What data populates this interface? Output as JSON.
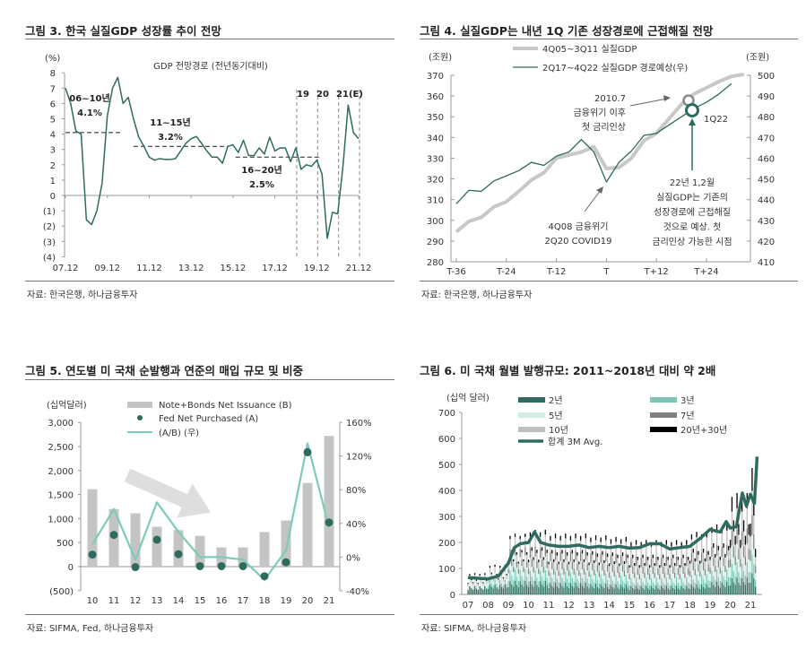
{
  "figures": [
    {
      "title": "그림 3. 한국 실질GDP 성장률 추이 전망",
      "source": "자료: 한국은행, 하나금융투자"
    },
    {
      "title": "그림 4. 실질GDP는 내년 1Q 기존 성장경로에 근접해질 전망",
      "source": "자료: 한국은행, 하나금융투자"
    },
    {
      "title": "그림 5. 연도별 미 국채 순발행과 연준의 매입 규모 및 비중",
      "source": "자료: SIFMA, Fed, 하나금융투자"
    },
    {
      "title": "그림 6. 미 국채 월별 발행규모: 2011~2018년 대비 약 2배",
      "source": "자료: SIFMA, 하나금융투자"
    }
  ],
  "chart_data": [
    {
      "type": "line",
      "title": "GDP 전망경로 (전년동기대비)",
      "ylabel": "(%)",
      "ylim": [
        -4,
        8
      ],
      "yticks": [
        "8",
        "7",
        "6",
        "5",
        "4",
        "3",
        "2",
        "1",
        "0",
        "(1)",
        "(2)",
        "(3)",
        "(4)"
      ],
      "xticks": [
        "07.12",
        "09.12",
        "11.12",
        "13.12",
        "15.12",
        "17.12",
        "19.12",
        "21.12"
      ],
      "color": "#2e6b5e",
      "values": [
        7.0,
        6.0,
        4.2,
        4.0,
        -1.6,
        -1.9,
        -1.0,
        0.8,
        5.2,
        7.0,
        7.7,
        6.0,
        6.4,
        5.0,
        3.8,
        3.2,
        2.5,
        2.3,
        2.4,
        2.35,
        2.35,
        2.4,
        2.9,
        3.4,
        3.7,
        3.85,
        3.4,
        2.9,
        2.5,
        2.5,
        2.1,
        3.2,
        3.3,
        2.8,
        3.6,
        2.6,
        2.6,
        3.1,
        2.7,
        3.8,
        2.9,
        3.1,
        3.1,
        2.2,
        3.1,
        1.7,
        2.0,
        1.9,
        2.3,
        1.4,
        -2.8,
        -1.1,
        -1.2,
        1.9,
        5.9,
        4.1,
        3.7
      ],
      "averages": [
        {
          "label": "06~10년",
          "value_label": "4.1%",
          "value": 4.1
        },
        {
          "label": "11~15년",
          "value_label": "3.2%",
          "value": 3.2
        },
        {
          "label": "16~20년",
          "value_label": "2.5%",
          "value": 2.5
        }
      ],
      "period_markers": [
        "19",
        "20",
        "21(E)"
      ]
    },
    {
      "type": "line",
      "ylabel_left": "(조원)",
      "ylabel_right": "(조원)",
      "ylim_left": [
        280,
        370
      ],
      "ylim_right": [
        410,
        500
      ],
      "yticks_left": [
        "370",
        "360",
        "350",
        "340",
        "330",
        "320",
        "310",
        "300",
        "290",
        "280"
      ],
      "yticks_right": [
        "500",
        "490",
        "480",
        "470",
        "460",
        "450",
        "440",
        "430",
        "420",
        "410"
      ],
      "xticks": [
        "T-36",
        "T-24",
        "T-12",
        "T",
        "T+12",
        "T+24"
      ],
      "series": [
        {
          "name": "4Q05~3Q11 실질GDP",
          "axis": "left",
          "color": "#c8c8c8",
          "x": [
            -36,
            -33,
            -30,
            -27,
            -24,
            -21,
            -18,
            -15,
            -12,
            -9,
            -6,
            -3,
            0,
            3,
            6,
            9,
            12,
            15,
            18,
            21,
            24,
            27,
            30,
            33
          ],
          "values": [
            294.5,
            299.5,
            301.5,
            306.5,
            309,
            314,
            319.5,
            323,
            330,
            331.5,
            333,
            335.5,
            325,
            325.5,
            330,
            338.5,
            342,
            349,
            356,
            361,
            364,
            367,
            369.5,
            370.5
          ]
        },
        {
          "name": "2Q17~4Q22 실질GDP 경로예상(우)",
          "axis": "right",
          "color": "#2e6b5e",
          "x": [
            -36,
            -33,
            -30,
            -27,
            -24,
            -21,
            -18,
            -15,
            -12,
            -9,
            -6,
            -3,
            0,
            3,
            6,
            9,
            12,
            15,
            18,
            21,
            24,
            27,
            30
          ],
          "values": [
            438,
            444.5,
            444,
            449,
            451.5,
            454,
            458,
            456.5,
            461,
            463,
            469,
            463,
            448.5,
            458,
            463.5,
            471,
            472,
            476,
            480,
            484,
            487,
            491,
            496
          ]
        }
      ],
      "annotations": {
        "rate_hike_2010": [
          "2010.7",
          "금융위기 이후",
          "첫 금리인상"
        ],
        "q1_22": "1Q22",
        "forecast_note": [
          "22년 1,2월",
          "실질GDP는 기존의",
          "성장경로에 근접해질",
          "것으로 예상. 첫",
          "금리인상 가능한 시점"
        ],
        "crisis_note": [
          "4Q08 금융위기",
          "2Q20 COVID19"
        ]
      }
    },
    {
      "type": "bar",
      "ylabel": "(십억달러)",
      "categories": [
        "10",
        "11",
        "12",
        "13",
        "14",
        "15",
        "16",
        "17",
        "18",
        "19",
        "20",
        "21"
      ],
      "ylim_left": [
        -500,
        3000
      ],
      "ylim_right": [
        -40,
        160
      ],
      "yticks_left": [
        "3,000",
        "2,500",
        "2,000",
        "1,500",
        "1,000",
        "500",
        "0",
        "(500)"
      ],
      "yticks_right": [
        "160%",
        "120%",
        "80%",
        "40%",
        "0%",
        "-40%"
      ],
      "series": [
        {
          "name": "Note+Bonds Net Issuance (B)",
          "kind": "bar",
          "color": "#c4c4c4",
          "values": [
            1610,
            1200,
            1110,
            830,
            760,
            640,
            400,
            400,
            720,
            960,
            1740,
            2720
          ]
        },
        {
          "name": "Fed Net Purchased (A)",
          "kind": "dot",
          "color": "#2e6b5e",
          "values": [
            250,
            660,
            -10,
            560,
            260,
            10,
            10,
            10,
            -200,
            90,
            2380,
            920
          ]
        },
        {
          "name": "(A/B) (우)",
          "kind": "line",
          "axis": "right",
          "color": "#7ccbb8",
          "values": [
            15,
            57,
            -3,
            65,
            30,
            0,
            0,
            -3,
            -27,
            8,
            135,
            35
          ]
        }
      ]
    },
    {
      "type": "bar",
      "stacked": true,
      "ylabel": "(십억 달러)",
      "ylim": [
        0,
        700
      ],
      "yticks": [
        "700",
        "600",
        "500",
        "400",
        "300",
        "200",
        "100",
        "0"
      ],
      "xticks": [
        "07",
        "08",
        "09",
        "10",
        "11",
        "12",
        "13",
        "14",
        "15",
        "16",
        "17",
        "18",
        "19",
        "20",
        "21"
      ],
      "years": [
        2007,
        2008,
        2009,
        2010,
        2011,
        2012,
        2013,
        2014,
        2015,
        2016,
        2017,
        2018,
        2019,
        2020,
        2021
      ],
      "series": [
        {
          "name": "2년",
          "color": "#2e6b5e",
          "values": [
            25,
            30,
            40,
            40,
            35,
            35,
            32,
            30,
            26,
            26,
            26,
            30,
            38,
            50,
            65
          ]
        },
        {
          "name": "3년",
          "color": "#7cc4b4",
          "values": [
            0,
            15,
            35,
            32,
            32,
            32,
            30,
            27,
            24,
            24,
            24,
            30,
            36,
            45,
            58
          ]
        },
        {
          "name": "5년",
          "color": "#d3ede6",
          "values": [
            20,
            20,
            40,
            40,
            35,
            35,
            35,
            35,
            34,
            34,
            34,
            38,
            41,
            55,
            60
          ]
        },
        {
          "name": "7년",
          "color": "#808080",
          "values": [
            0,
            0,
            25,
            30,
            29,
            29,
            29,
            29,
            28,
            28,
            28,
            31,
            32,
            45,
            61
          ]
        },
        {
          "name": "10년",
          "color": "#c0c0c0",
          "values": [
            13,
            17,
            30,
            35,
            35,
            35,
            35,
            35,
            35,
            35,
            35,
            40,
            42,
            60,
            75
          ]
        },
        {
          "name": "20년+30년",
          "color": "#000000",
          "values": [
            5,
            6,
            10,
            14,
            14,
            14,
            14,
            14,
            14,
            14,
            14,
            16,
            18,
            45,
            70
          ]
        }
      ],
      "avg_line": {
        "name": "합계 3M Avg.",
        "color": "#2e6b5e",
        "x": [
          2007.0,
          2007.5,
          2008.0,
          2008.5,
          2009.0,
          2009.3,
          2009.6,
          2010.0,
          2010.3,
          2010.6,
          2011.0,
          2011.5,
          2012.0,
          2012.5,
          2013.0,
          2013.5,
          2014.0,
          2014.5,
          2015.0,
          2015.5,
          2016.0,
          2016.5,
          2017.0,
          2017.5,
          2018.0,
          2018.5,
          2019.0,
          2019.5,
          2019.8,
          2020.0,
          2020.3,
          2020.6,
          2020.8,
          2021.0,
          2021.2,
          2021.33
        ],
        "values": [
          65,
          62,
          60,
          70,
          120,
          180,
          195,
          200,
          240,
          200,
          190,
          185,
          185,
          190,
          180,
          185,
          180,
          185,
          178,
          180,
          195,
          195,
          175,
          180,
          185,
          215,
          250,
          240,
          280,
          255,
          260,
          390,
          340,
          385,
          350,
          530
        ]
      }
    }
  ]
}
